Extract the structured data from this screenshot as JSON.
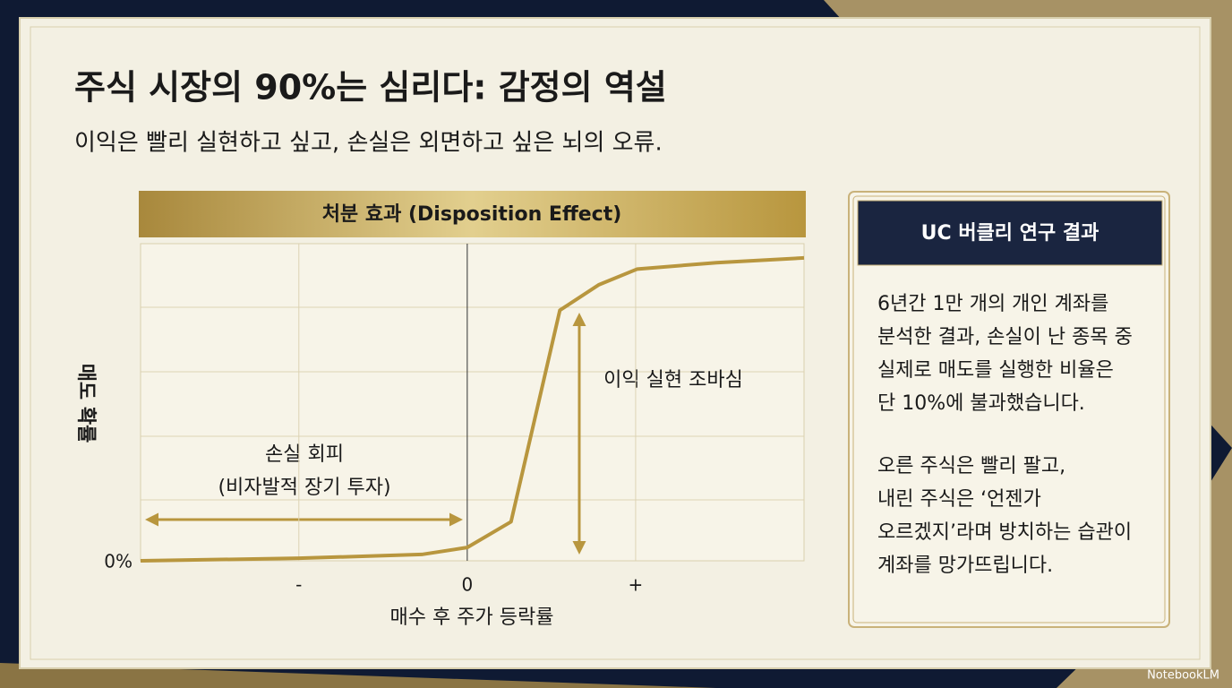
{
  "title": "주식 시장의 90%는 심리다: 감정의 역설",
  "subtitle": "이익은 빨리 실현하고 싶고, 손실은 외면하고 싶은 뇌의 오류.",
  "chart_data": {
    "type": "line",
    "title": "처분 효과 (Disposition Effect)",
    "x_label": "매수 후 주가 등락률",
    "y_label": "매도 확률",
    "x": [
      -1.94,
      -1,
      -0.27,
      0,
      0.26,
      0.55,
      0.78,
      1.01,
      1.48,
      2.0
    ],
    "values": [
      0,
      0.8,
      2,
      4.2,
      12.3,
      79,
      87,
      92,
      94,
      95.5
    ],
    "color": "#b8963e",
    "xlim": [
      -1.94,
      2.0
    ],
    "ylim": [
      0,
      100
    ],
    "xticks": [
      {
        "value": -1,
        "label": "-"
      },
      0,
      {
        "value": 1,
        "label": "+"
      }
    ],
    "yticks": [
      {
        "value": 0,
        "label": "0%"
      }
    ],
    "annotations": [
      "이익 실현 조바심",
      "손실 회피",
      "(비자발적 장기 투자)"
    ]
  },
  "panel": {
    "heading": "UC 버클리 연구 결과",
    "paragraphs": [
      [
        "6년간 1만 개의 개인 계좌를",
        "분석한 결과, 손실이 난 종목 중",
        "실제로 매도를 실행한 비율은",
        "단 10%에 불과했습니다."
      ],
      [
        "오른 주식은 빨리 팔고,",
        "내린 주식은 ‘언젠가",
        "오르겠지’라며 방치하는 습관이",
        "계좌를 망가뜨립니다."
      ]
    ]
  },
  "footer": "NotebookLM"
}
